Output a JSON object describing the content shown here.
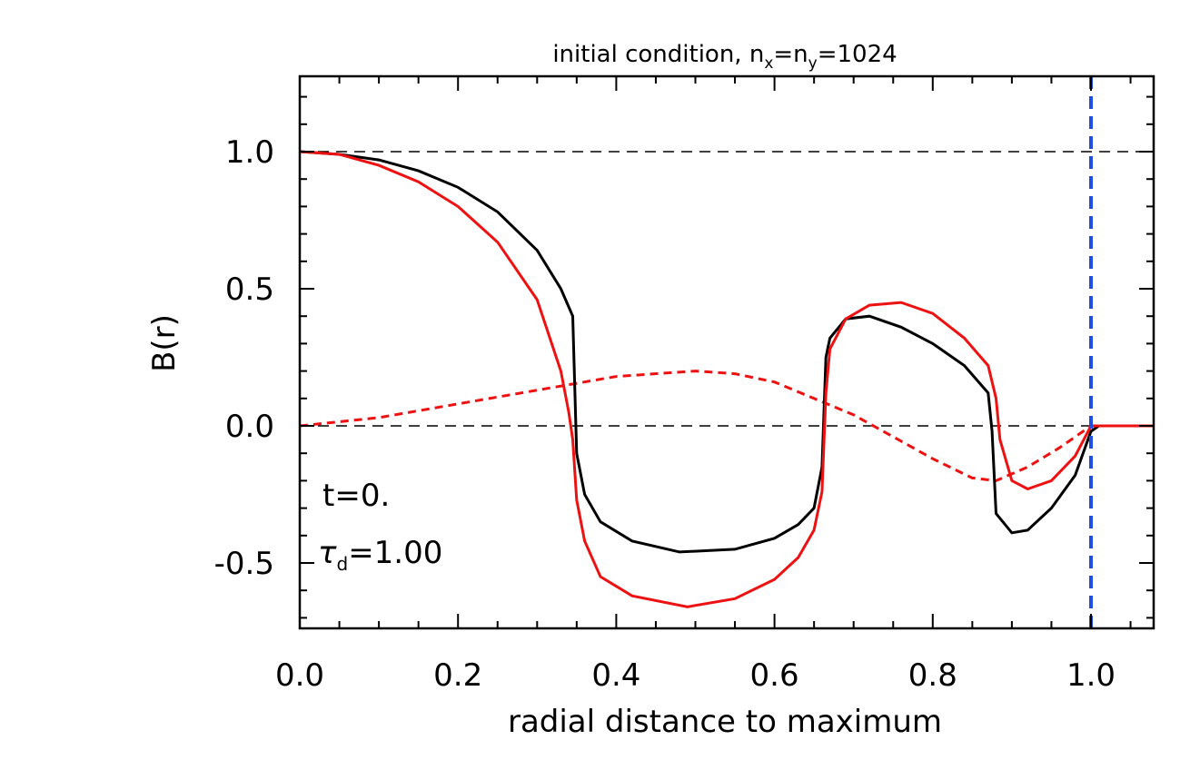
{
  "chart_data": {
    "type": "line",
    "title": "initial condition, n_x=n_y=1024",
    "title_parts": {
      "prefix": "initial condition, n",
      "sub1": "x",
      "eq1": "=n",
      "sub2": "y",
      "suffix": "=1024"
    },
    "xlabel": "radial distance to maximum",
    "ylabel": "B(r)",
    "xlim": [
      0.0,
      1.08
    ],
    "ylim": [
      -0.75,
      1.28
    ],
    "x_ticks": [
      "0.0",
      "0.2",
      "0.4",
      "0.6",
      "0.8",
      "1.0"
    ],
    "x_tick_values": [
      0.0,
      0.2,
      0.4,
      0.6,
      0.8,
      1.0
    ],
    "y_ticks": [
      "-0.5",
      "0.0",
      "0.5",
      "1.0"
    ],
    "y_tick_values": [
      -0.5,
      0.0,
      0.5,
      1.0
    ],
    "annotations": {
      "time": "t=0.",
      "tau_symbol": "τ",
      "tau_sub": "d",
      "tau_value": "=1.00"
    },
    "reference_lines": {
      "horizontal": [
        1.0,
        0.0
      ],
      "vertical": 1.0
    },
    "colors": {
      "black_series": "#000000",
      "red_series": "#ee1111",
      "blue_vline": "#1f4fe0",
      "reference": "#000000"
    },
    "series": [
      {
        "name": "black solid",
        "style": "solid",
        "color": "#000000",
        "x": [
          0.0,
          0.05,
          0.1,
          0.15,
          0.2,
          0.25,
          0.3,
          0.33,
          0.345,
          0.35,
          0.36,
          0.38,
          0.42,
          0.48,
          0.55,
          0.6,
          0.63,
          0.65,
          0.66,
          0.665,
          0.67,
          0.69,
          0.72,
          0.76,
          0.8,
          0.84,
          0.87,
          0.875,
          0.88,
          0.9,
          0.92,
          0.95,
          0.98,
          1.0,
          1.01,
          1.08
        ],
        "y": [
          1.0,
          0.99,
          0.97,
          0.93,
          0.87,
          0.78,
          0.64,
          0.5,
          0.4,
          -0.1,
          -0.25,
          -0.35,
          -0.42,
          -0.46,
          -0.45,
          -0.41,
          -0.36,
          -0.3,
          -0.15,
          0.25,
          0.32,
          0.39,
          0.4,
          0.36,
          0.3,
          0.22,
          0.12,
          -0.02,
          -0.32,
          -0.39,
          -0.38,
          -0.3,
          -0.18,
          -0.02,
          0.0,
          0.0
        ]
      },
      {
        "name": "red solid",
        "style": "solid",
        "color": "#ee1111",
        "x": [
          0.0,
          0.05,
          0.1,
          0.15,
          0.2,
          0.25,
          0.3,
          0.33,
          0.34,
          0.345,
          0.35,
          0.36,
          0.38,
          0.42,
          0.49,
          0.55,
          0.6,
          0.63,
          0.65,
          0.66,
          0.665,
          0.67,
          0.69,
          0.72,
          0.76,
          0.8,
          0.84,
          0.87,
          0.88,
          0.885,
          0.9,
          0.92,
          0.95,
          0.98,
          1.0,
          1.01,
          1.08
        ],
        "y": [
          1.0,
          0.99,
          0.95,
          0.89,
          0.8,
          0.67,
          0.46,
          0.2,
          0.05,
          -0.05,
          -0.27,
          -0.42,
          -0.55,
          -0.62,
          -0.66,
          -0.63,
          -0.56,
          -0.48,
          -0.38,
          -0.24,
          0.12,
          0.28,
          0.39,
          0.44,
          0.45,
          0.41,
          0.32,
          0.22,
          0.1,
          -0.05,
          -0.2,
          -0.23,
          -0.2,
          -0.11,
          0.0,
          0.0,
          0.0
        ]
      },
      {
        "name": "red dashed",
        "style": "dashed",
        "color": "#ee1111",
        "x": [
          0.0,
          0.1,
          0.2,
          0.3,
          0.4,
          0.5,
          0.55,
          0.6,
          0.7,
          0.75,
          0.8,
          0.85,
          0.88,
          0.92,
          0.96,
          1.0
        ],
        "y": [
          0.0,
          0.03,
          0.08,
          0.13,
          0.18,
          0.2,
          0.19,
          0.16,
          0.04,
          -0.04,
          -0.12,
          -0.19,
          -0.2,
          -0.15,
          -0.08,
          0.0
        ]
      }
    ]
  }
}
